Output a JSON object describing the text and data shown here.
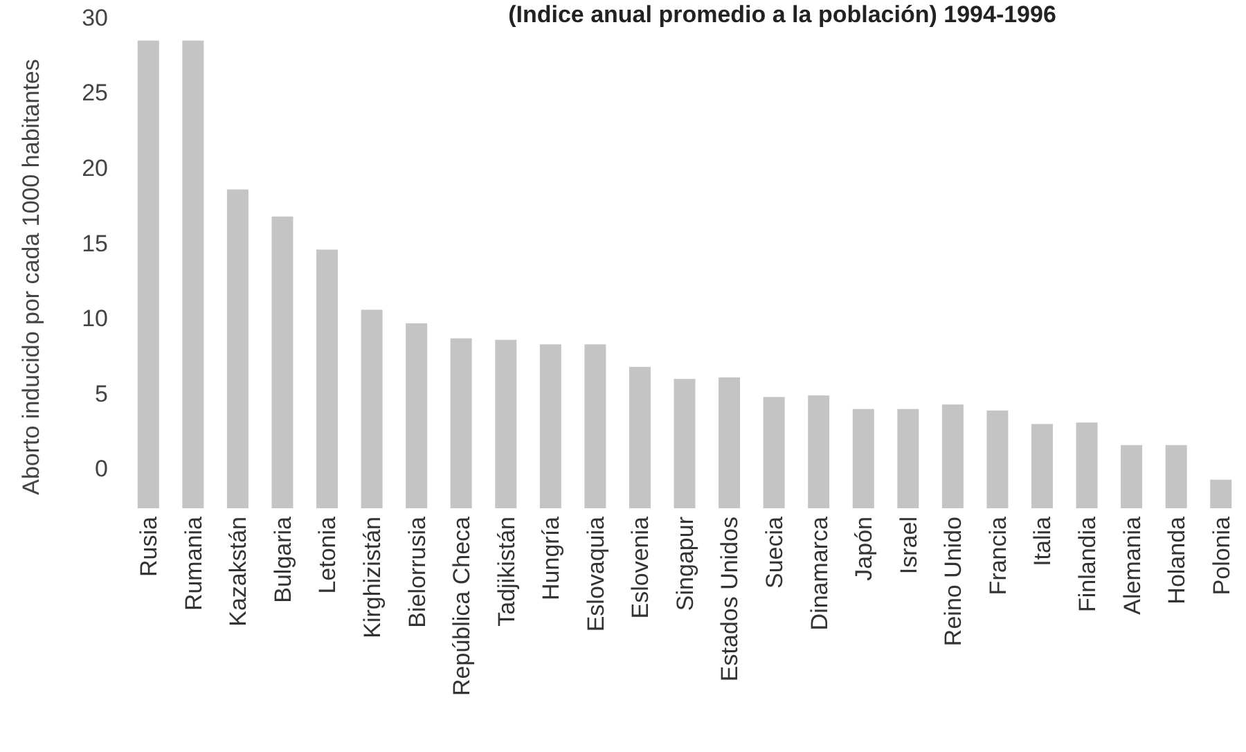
{
  "chart_data": {
    "type": "bar",
    "title": "(Indice anual promedio a la población) 1994-1996",
    "ylabel": "Aborto inducido por cada 1000 habitantes",
    "categories": [
      "Rusia",
      "Rumania",
      "Kazakstán",
      "Bulgaria",
      "Letonia",
      "Kirghizistán",
      "Bielorrusia",
      "República Checa",
      "Tadjikistán",
      "Hungría",
      "Eslovaquia",
      "Eslovenia",
      "Singapur",
      "Estados Unidos",
      "Suecia",
      "Dinamarca",
      "Japón",
      "Israel",
      "Reino Unido",
      "Francia",
      "Italia",
      "Finlandia",
      "Alemania",
      "Holanda",
      "Polonia"
    ],
    "base": [
      -2.6,
      -2.6,
      -2.6,
      -2.6,
      -2.6,
      -2.6,
      -2.6,
      -2.6,
      -2.6,
      -2.6,
      -2.6,
      -2.6,
      -2.6,
      -2.6,
      -2.6,
      -2.6,
      -2.6,
      -2.6,
      -2.6,
      -2.6,
      -2.6,
      -2.6,
      -2.6,
      -2.6,
      -2.6
    ],
    "values": [
      31.1,
      31.1,
      21.2,
      19.4,
      17.2,
      13.2,
      12.3,
      11.3,
      11.2,
      10.9,
      10.9,
      9.4,
      8.6,
      8.7,
      7.4,
      7.5,
      6.6,
      6.6,
      6.9,
      6.5,
      5.6,
      5.7,
      4.2,
      4.2,
      1.9
    ],
    "color": "#c4c4c4",
    "ylim": [
      -2.6,
      30
    ],
    "yticks": [
      0,
      5,
      10,
      15,
      20,
      25,
      30
    ],
    "grid": false
  }
}
